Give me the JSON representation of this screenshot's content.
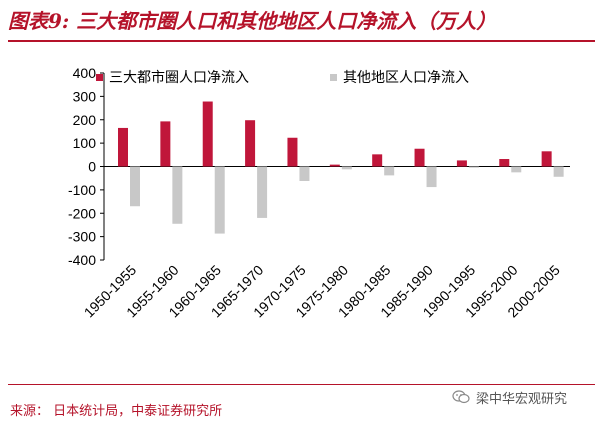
{
  "title": "图表9: 三大都市圈人口和其他地区人口净流入（万人）",
  "source": "来源： 日本统计局，中泰证券研究所",
  "watermark": "梁中华宏观研究",
  "colors": {
    "accent": "#b5132a",
    "series1": "#c0163a",
    "series2": "#c8c8c8"
  },
  "chart_data": {
    "type": "bar",
    "title": "三大都市圈人口和其他地区人口净流入（万人）",
    "xlabel": "",
    "ylabel": "",
    "ylim": [
      -400,
      400
    ],
    "yticks": [
      400,
      300,
      200,
      100,
      0,
      -100,
      -200,
      -300,
      -400
    ],
    "categories": [
      "1950-1955",
      "1955-1960",
      "1960-1965",
      "1965-1970",
      "1970-1975",
      "1975-1980",
      "1980-1985",
      "1985-1990",
      "1990-1995",
      "1995-2000",
      "2000-2005"
    ],
    "legend_position": "top",
    "series": [
      {
        "name": "三大都市圈人口净流入",
        "values": [
          165,
          193,
          278,
          198,
          123,
          8,
          52,
          76,
          26,
          32,
          65
        ]
      },
      {
        "name": "其他地区人口净流入",
        "values": [
          -170,
          -245,
          -287,
          -220,
          -62,
          -12,
          -38,
          -88,
          -5,
          -25,
          -44
        ]
      }
    ]
  }
}
